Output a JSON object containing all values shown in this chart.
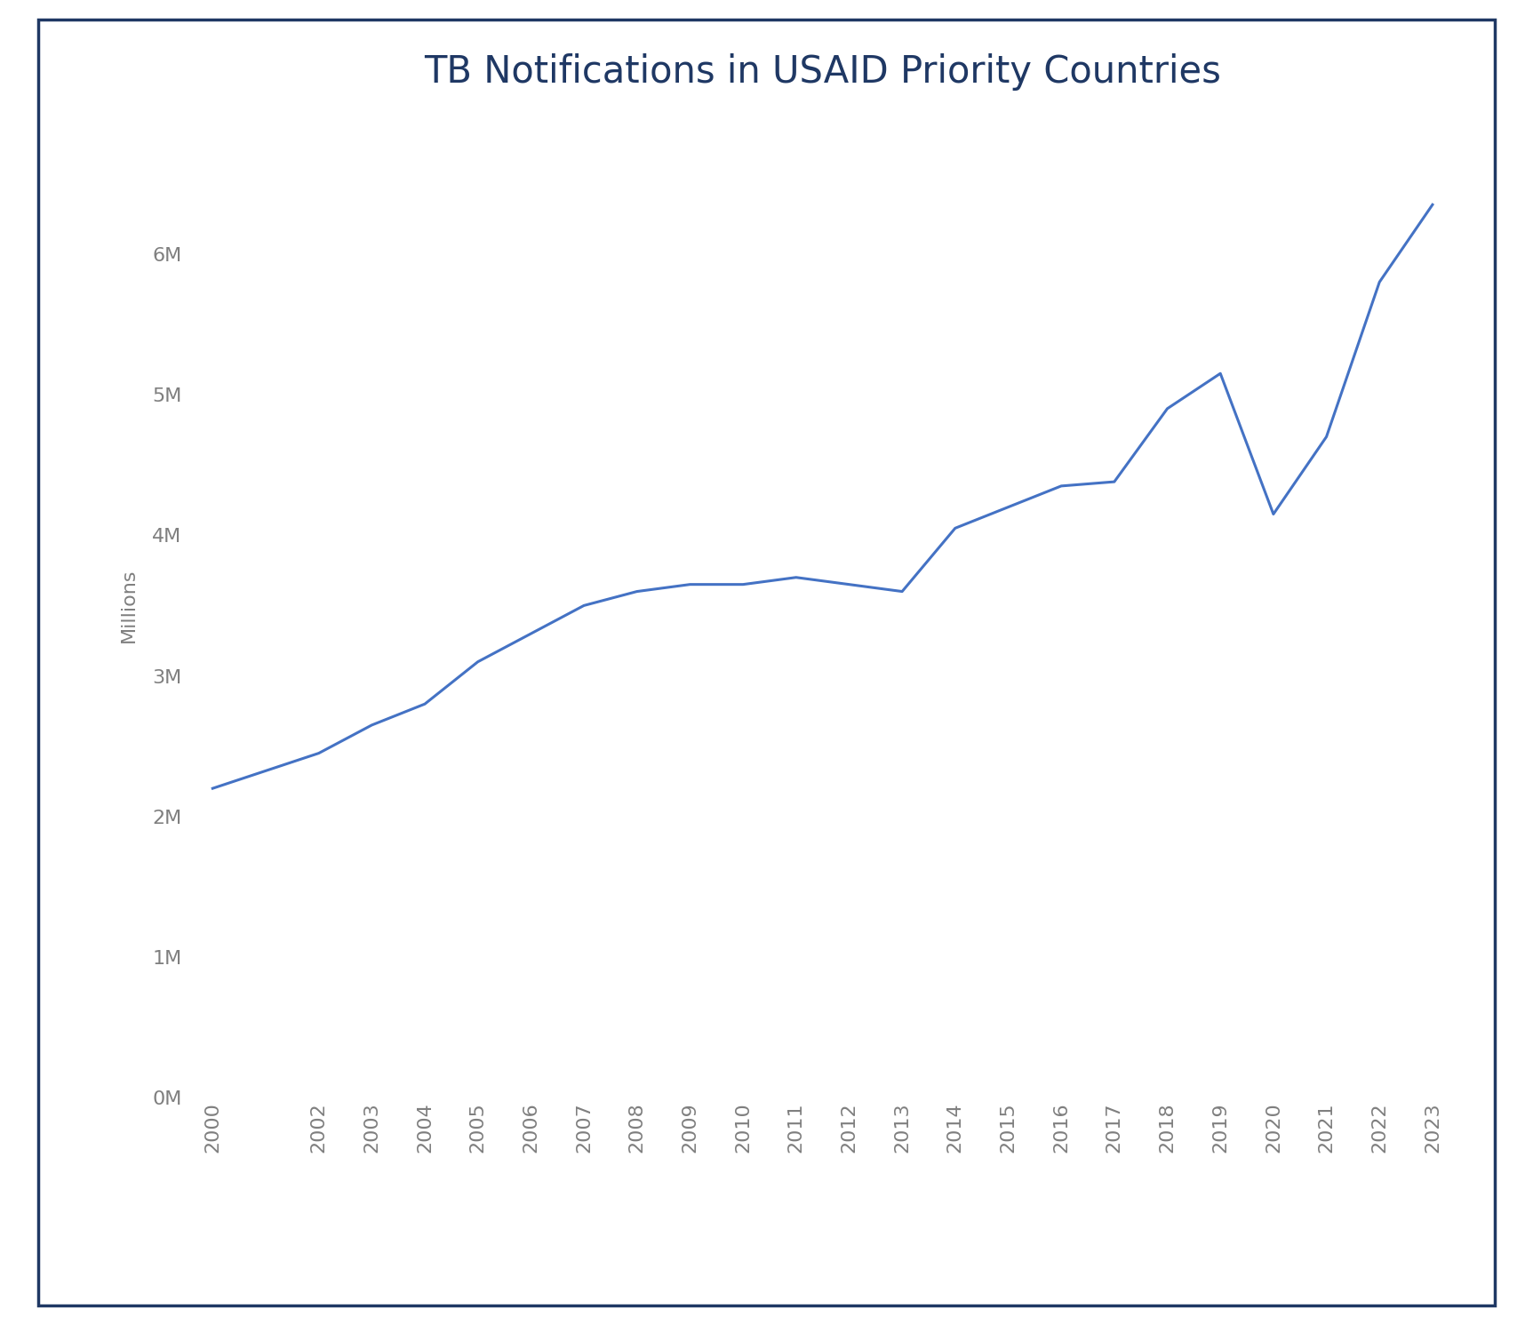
{
  "title": "TB Notifications in USAID Priority Countries",
  "years": [
    2000,
    2002,
    2003,
    2004,
    2005,
    2006,
    2007,
    2008,
    2009,
    2010,
    2011,
    2012,
    2013,
    2014,
    2015,
    2016,
    2017,
    2018,
    2019,
    2020,
    2021,
    2022,
    2023
  ],
  "values": [
    2200000,
    2450000,
    2650000,
    2800000,
    3100000,
    3300000,
    3500000,
    3600000,
    3650000,
    3650000,
    3700000,
    3650000,
    3600000,
    4050000,
    4200000,
    4350000,
    4380000,
    4900000,
    5150000,
    4150000,
    4700000,
    5800000,
    6350000
  ],
  "line_color": "#4472c4",
  "line_width": 2.2,
  "ylabel": "Millions",
  "ytick_labels": [
    "0M",
    "1M",
    "2M",
    "3M",
    "4M",
    "5M",
    "6M"
  ],
  "ytick_values": [
    0,
    1000000,
    2000000,
    3000000,
    4000000,
    5000000,
    6000000
  ],
  "ylim": [
    0,
    7000000
  ],
  "title_fontsize": 30,
  "ylabel_fontsize": 16,
  "tick_fontsize": 16,
  "title_color": "#1f3864",
  "tick_color": "#7f7f7f",
  "ylabel_color": "#7f7f7f",
  "background_color": "#ffffff",
  "border_color": "#1f3864",
  "border_linewidth": 2.5
}
